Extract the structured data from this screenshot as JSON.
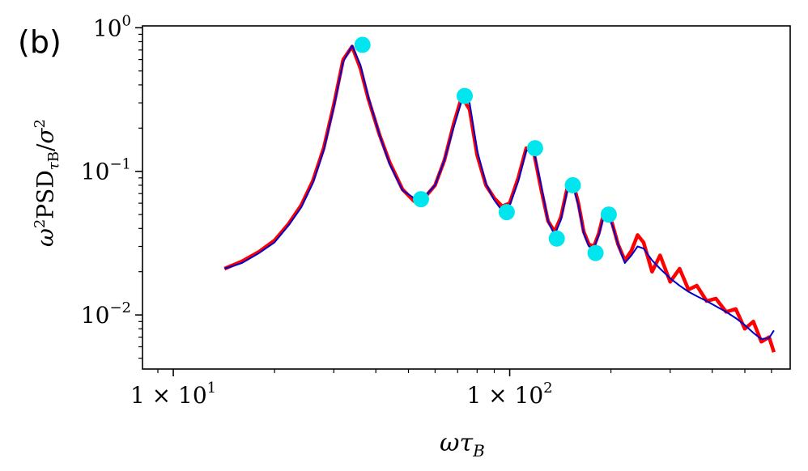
{
  "panel_label": "(b)",
  "xlabel_main": "ωτ",
  "xlabel_sub": "B",
  "ylabel_pre": "ω",
  "ylabel_sup1": "2",
  "ylabel_mid": "PSD",
  "ylabel_tau": "τ",
  "ylabel_sub": "B",
  "ylabel_slash": "/",
  "ylabel_sigma": "σ",
  "ylabel_sup2": "2",
  "colors": {
    "noisy": "#ff0000",
    "smooth": "#0000cc",
    "peaks": "#00e5ee",
    "axis": "#000000"
  },
  "chart_data": {
    "type": "line",
    "xscale": "log",
    "yscale": "log",
    "xlim": [
      8.1,
      682
    ],
    "ylim": [
      0.0042,
      1.03
    ],
    "xticks": [
      {
        "value": 10,
        "mantissa": "1 × 10",
        "exp": "1"
      },
      {
        "value": 100,
        "mantissa": "1 × 10",
        "exp": "2"
      }
    ],
    "yticks": [
      {
        "value": 1,
        "base": "10",
        "exp": "0"
      },
      {
        "value": 0.1,
        "base": "10",
        "exp": "−1"
      },
      {
        "value": 0.01,
        "base": "10",
        "exp": "−2"
      }
    ],
    "series": [
      {
        "style": "noisy",
        "x": [
          14.2,
          16,
          18,
          20,
          22,
          24,
          26,
          28,
          30,
          32,
          34,
          36,
          38,
          41,
          44,
          48,
          52,
          56,
          60,
          64,
          68,
          72,
          76,
          80,
          85,
          90,
          95,
          100,
          106,
          112,
          118,
          124,
          130,
          136,
          142,
          148,
          154,
          160,
          166,
          172,
          178,
          184,
          190,
          196,
          202,
          210,
          220,
          230,
          240,
          250,
          265,
          280,
          300,
          320,
          340,
          360,
          385,
          410,
          440,
          470,
          500,
          530,
          560,
          590,
          610
        ],
        "y": [
          0.021,
          0.0236,
          0.0276,
          0.033,
          0.043,
          0.058,
          0.086,
          0.145,
          0.29,
          0.6,
          0.74,
          0.52,
          0.32,
          0.18,
          0.115,
          0.075,
          0.062,
          0.066,
          0.08,
          0.12,
          0.21,
          0.33,
          0.27,
          0.13,
          0.08,
          0.065,
          0.057,
          0.06,
          0.09,
          0.145,
          0.135,
          0.075,
          0.045,
          0.038,
          0.048,
          0.075,
          0.085,
          0.06,
          0.038,
          0.031,
          0.03,
          0.037,
          0.05,
          0.052,
          0.043,
          0.031,
          0.024,
          0.028,
          0.036,
          0.032,
          0.02,
          0.026,
          0.017,
          0.021,
          0.015,
          0.016,
          0.0125,
          0.013,
          0.0105,
          0.011,
          0.008,
          0.009,
          0.0065,
          0.007,
          0.0055
        ]
      },
      {
        "style": "smooth",
        "x": [
          14.2,
          16,
          18,
          20,
          22,
          24,
          26,
          28,
          30,
          32,
          34,
          36,
          38,
          41,
          44,
          48,
          52,
          56,
          60,
          64,
          68,
          72,
          76,
          80,
          85,
          90,
          95,
          100,
          106,
          112,
          118,
          124,
          130,
          136,
          142,
          148,
          154,
          160,
          166,
          172,
          178,
          184,
          190,
          196,
          202,
          210,
          220,
          230,
          240,
          250,
          265,
          280,
          300,
          320,
          340,
          360,
          385,
          410,
          440,
          470,
          500,
          530,
          560,
          590,
          610
        ],
        "y": [
          0.021,
          0.023,
          0.027,
          0.032,
          0.042,
          0.056,
          0.083,
          0.14,
          0.28,
          0.58,
          0.75,
          0.55,
          0.33,
          0.18,
          0.112,
          0.074,
          0.065,
          0.067,
          0.08,
          0.12,
          0.2,
          0.31,
          0.3,
          0.14,
          0.082,
          0.063,
          0.053,
          0.058,
          0.085,
          0.14,
          0.138,
          0.08,
          0.045,
          0.036,
          0.046,
          0.072,
          0.08,
          0.058,
          0.037,
          0.03,
          0.029,
          0.036,
          0.048,
          0.05,
          0.042,
          0.031,
          0.023,
          0.026,
          0.03,
          0.029,
          0.024,
          0.021,
          0.018,
          0.016,
          0.0145,
          0.0135,
          0.0125,
          0.0115,
          0.0105,
          0.0095,
          0.0085,
          0.0075,
          0.0068,
          0.0069,
          0.0078
        ]
      },
      {
        "style": "peaks",
        "x": [
          36.5,
          54.5,
          73.5,
          98,
          119,
          138,
          154,
          180,
          197
        ],
        "y": [
          0.76,
          0.064,
          0.335,
          0.052,
          0.145,
          0.034,
          0.08,
          0.027,
          0.05
        ]
      }
    ]
  }
}
